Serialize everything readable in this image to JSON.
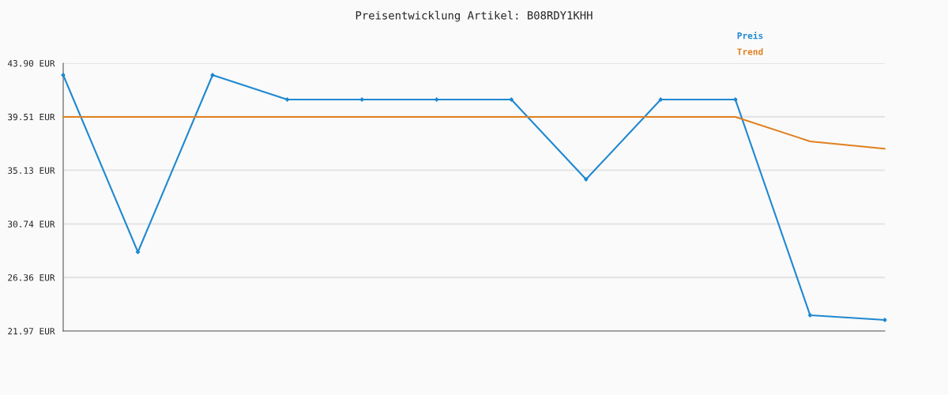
{
  "chart_data": {
    "type": "line",
    "title": "Preisentwicklung Artikel: B08RDY1KHH",
    "categories": [
      null,
      null,
      null,
      null,
      null,
      null,
      null,
      null,
      null,
      null,
      null,
      null
    ],
    "series": [
      {
        "name": "Preis",
        "color": "#1f88d0",
        "marker": "diamond",
        "values": [
          42.93,
          28.44,
          42.93,
          40.92,
          40.92,
          40.92,
          40.92,
          34.39,
          40.92,
          40.92,
          23.26,
          22.88
        ]
      },
      {
        "name": "Trend",
        "color": "#e08020",
        "marker": "none",
        "values": [
          39.5,
          39.5,
          39.5,
          39.5,
          39.5,
          39.5,
          39.5,
          39.5,
          39.5,
          39.5,
          37.5,
          36.9
        ]
      }
    ],
    "ylim": [
      21.97,
      43.9
    ],
    "yticks": [
      {
        "value": 21.97,
        "label": "21.97 EUR"
      },
      {
        "value": 26.36,
        "label": "26.36 EUR"
      },
      {
        "value": 30.74,
        "label": "30.74 EUR"
      },
      {
        "value": 35.13,
        "label": "35.13 EUR"
      },
      {
        "value": 39.51,
        "label": "39.51 EUR"
      },
      {
        "value": 43.9,
        "label": "43.90 EUR"
      }
    ],
    "grid": "y",
    "legend": "top right",
    "line_style": "solid"
  }
}
